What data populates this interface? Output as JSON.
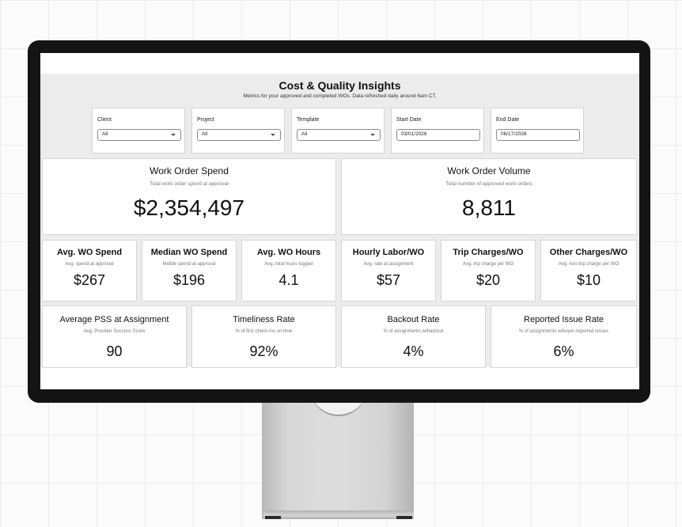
{
  "dashboard": {
    "title": "Cost & Quality Insights",
    "subtitle": "Metrics for your approved and completed WOs. Data refreshed daily around 6am CT."
  },
  "filters": [
    {
      "label": "Client",
      "value": "All",
      "kind": "dropdown"
    },
    {
      "label": "Project",
      "value": "All",
      "kind": "dropdown"
    },
    {
      "label": "Template",
      "value": "All",
      "kind": "dropdown"
    },
    {
      "label": "Start Date",
      "value": "03/01/2026",
      "kind": "date"
    },
    {
      "label": "End Date",
      "value": "06/17/2026",
      "kind": "date"
    }
  ],
  "primary_metrics": [
    {
      "title": "Work Order Spend",
      "subtitle": "Total work order spend at approval",
      "value": "$2,354,497"
    },
    {
      "title": "Work Order Volume",
      "subtitle": "Total number of approved work orders",
      "value": "8,811"
    }
  ],
  "secondary_metrics": [
    {
      "title": "Avg. WO Spend",
      "subtitle": "Avg. spend at approval",
      "value": "$267"
    },
    {
      "title": "Median WO Spend",
      "subtitle": "Middle spend at approval",
      "value": "$196"
    },
    {
      "title": "Avg. WO Hours",
      "subtitle": "Avg. total hours logged",
      "value": "4.1"
    },
    {
      "title": "Hourly Labor/WO",
      "subtitle": "Avg. rate at assignment",
      "value": "$57"
    },
    {
      "title": "Trip Charges/WO",
      "subtitle": "Avg. trip charge per WO",
      "value": "$20"
    },
    {
      "title": "Other Charges/WO",
      "subtitle": "Avg. non-trip charge per WO",
      "value": "$10"
    }
  ],
  "quality_metrics": [
    {
      "title": "Average PSS at Assignment",
      "subtitle": "Avg. Provider Success Score",
      "value": "90"
    },
    {
      "title": "Timeliness Rate",
      "subtitle": "% of first check-ins on-time",
      "value": "92%"
    },
    {
      "title": "Backout Rate",
      "subtitle": "% of assignments w/backout",
      "value": "4%"
    },
    {
      "title": "Reported Issue Rate",
      "subtitle": "% of assignments w/buyer-reported issues",
      "value": "6%"
    }
  ],
  "colors": {
    "monitor_bezel": "#141414",
    "header_background": "#ececec",
    "card_border": "#d6d6d6",
    "text_primary": "#111111",
    "text_secondary": "#777777"
  },
  "icons": {
    "dropdown": "chevron-down-icon"
  }
}
